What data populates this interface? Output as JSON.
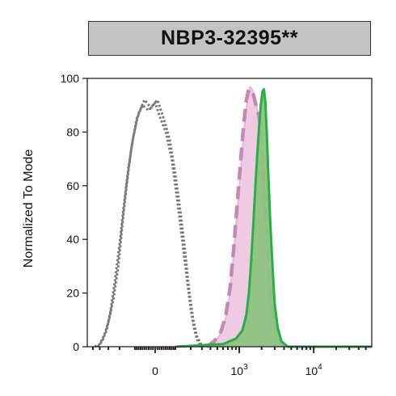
{
  "chart_data": {
    "type": "area",
    "title": "NBP3-32395**",
    "xlabel": "",
    "ylabel": "Normalized To Mode",
    "xscale": "biexponential",
    "x_tick_labels": [
      {
        "base": "0",
        "exp": ""
      },
      {
        "base": "10",
        "exp": "3"
      },
      {
        "base": "10",
        "exp": "4"
      }
    ],
    "x_tick_values": [
      0,
      1000,
      10000
    ],
    "xlim": [
      -600,
      60000
    ],
    "ylim": [
      0,
      100
    ],
    "y_ticks": [
      0,
      20,
      40,
      60,
      80,
      100
    ],
    "y_tick_labels": [
      "0",
      "20",
      "40",
      "60",
      "80",
      "100"
    ],
    "grid": false,
    "legend": "none",
    "series": [
      {
        "style": "dotted",
        "fill": "none",
        "color": "#777777",
        "points": [
          [
            -470,
            0
          ],
          [
            -400,
            1
          ],
          [
            -350,
            4
          ],
          [
            -300,
            9
          ],
          [
            -250,
            18
          ],
          [
            -210,
            30
          ],
          [
            -180,
            45
          ],
          [
            -150,
            60
          ],
          [
            -120,
            74
          ],
          [
            -90,
            85
          ],
          [
            -60,
            90
          ],
          [
            -30,
            88
          ],
          [
            0,
            91
          ],
          [
            20,
            86
          ],
          [
            50,
            80
          ],
          [
            80,
            70
          ],
          [
            110,
            55
          ],
          [
            140,
            40
          ],
          [
            170,
            26
          ],
          [
            200,
            14
          ],
          [
            230,
            6
          ],
          [
            260,
            2
          ],
          [
            290,
            0
          ]
        ]
      },
      {
        "style": "dotted",
        "fill": "none",
        "color": "#777777",
        "points": [
          [
            -430,
            0
          ],
          [
            -370,
            2
          ],
          [
            -320,
            6
          ],
          [
            -280,
            13
          ],
          [
            -240,
            24
          ],
          [
            -200,
            38
          ],
          [
            -170,
            52
          ],
          [
            -140,
            66
          ],
          [
            -110,
            78
          ],
          [
            -80,
            87
          ],
          [
            -50,
            92
          ],
          [
            -20,
            89
          ],
          [
            10,
            92
          ],
          [
            40,
            85
          ],
          [
            70,
            77
          ],
          [
            100,
            64
          ],
          [
            130,
            50
          ],
          [
            160,
            35
          ],
          [
            190,
            20
          ],
          [
            220,
            10
          ],
          [
            250,
            4
          ],
          [
            290,
            1
          ],
          [
            330,
            0
          ]
        ]
      },
      {
        "style": "solid-fill",
        "fill": "#efcbe3",
        "color": "#e2b0d2",
        "points": [
          [
            300,
            0
          ],
          [
            400,
            1
          ],
          [
            500,
            3
          ],
          [
            600,
            7
          ],
          [
            700,
            14
          ],
          [
            800,
            28
          ],
          [
            900,
            45
          ],
          [
            1000,
            60
          ],
          [
            1100,
            73
          ],
          [
            1200,
            85
          ],
          [
            1300,
            93
          ],
          [
            1400,
            97
          ],
          [
            1500,
            96
          ],
          [
            1600,
            93
          ],
          [
            1700,
            90
          ],
          [
            1800,
            87
          ],
          [
            1900,
            82
          ],
          [
            2000,
            74
          ],
          [
            2200,
            55
          ],
          [
            2400,
            35
          ],
          [
            2700,
            15
          ],
          [
            3000,
            6
          ],
          [
            3500,
            1
          ],
          [
            4000,
            0
          ]
        ]
      },
      {
        "style": "dashed",
        "fill": "none",
        "color": "#c487b8",
        "points": [
          [
            350,
            0
          ],
          [
            450,
            2
          ],
          [
            550,
            5
          ],
          [
            650,
            11
          ],
          [
            750,
            22
          ],
          [
            850,
            38
          ],
          [
            950,
            55
          ],
          [
            1050,
            70
          ],
          [
            1150,
            83
          ],
          [
            1250,
            92
          ],
          [
            1350,
            96
          ],
          [
            1450,
            95
          ],
          [
            1550,
            94
          ],
          [
            1650,
            91
          ],
          [
            1750,
            88
          ],
          [
            1850,
            86
          ],
          [
            1950,
            80
          ],
          [
            2100,
            67
          ],
          [
            2300,
            46
          ],
          [
            2500,
            28
          ],
          [
            2800,
            12
          ],
          [
            3200,
            4
          ],
          [
            3700,
            0
          ]
        ]
      },
      {
        "style": "solid-fill",
        "fill": "#8dc27f",
        "color": "#2aae4a",
        "points": [
          [
            100,
            0
          ],
          [
            600,
            1
          ],
          [
            900,
            3
          ],
          [
            1100,
            6
          ],
          [
            1250,
            12
          ],
          [
            1350,
            20
          ],
          [
            1450,
            32
          ],
          [
            1550,
            46
          ],
          [
            1650,
            60
          ],
          [
            1750,
            72
          ],
          [
            1850,
            82
          ],
          [
            1950,
            90
          ],
          [
            2050,
            95
          ],
          [
            2150,
            96
          ],
          [
            2250,
            91
          ],
          [
            2350,
            80
          ],
          [
            2450,
            66
          ],
          [
            2600,
            48
          ],
          [
            2800,
            30
          ],
          [
            3000,
            16
          ],
          [
            3300,
            7
          ],
          [
            3700,
            2
          ],
          [
            4500,
            0
          ],
          [
            60000,
            0
          ]
        ]
      }
    ]
  }
}
